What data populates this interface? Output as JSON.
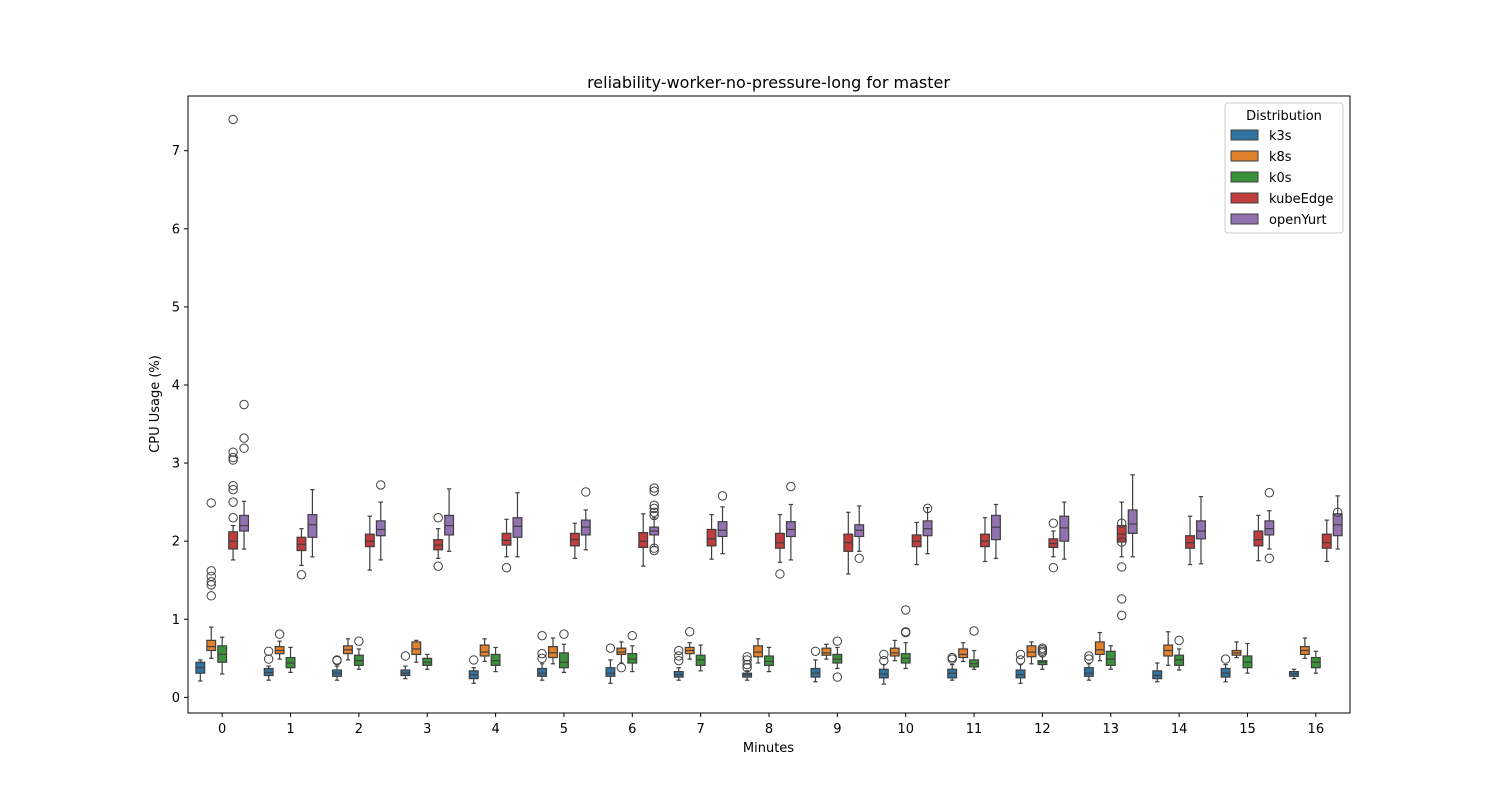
{
  "chart_data": {
    "type": "box",
    "title": "reliability-worker-no-pressure-long for master",
    "xlabel": "Minutes",
    "ylabel": "CPU Usage (%)",
    "categories": [
      "0",
      "1",
      "2",
      "3",
      "4",
      "5",
      "6",
      "7",
      "8",
      "9",
      "10",
      "11",
      "12",
      "13",
      "14",
      "15",
      "16"
    ],
    "y_ticks": [
      0,
      1,
      2,
      3,
      4,
      5,
      6,
      7
    ],
    "ylim": [
      -0.2,
      7.7
    ],
    "grid": false,
    "legend": {
      "title": "Distribution",
      "position": "top-right"
    },
    "series": [
      {
        "name": "k3s",
        "color": "#3274a1",
        "boxes": [
          {
            "q1": 0.31,
            "med": 0.38,
            "q3": 0.45,
            "lo": 0.21,
            "hi": 0.48,
            "out": []
          },
          {
            "q1": 0.28,
            "med": 0.32,
            "q3": 0.37,
            "lo": 0.22,
            "hi": 0.4,
            "out": [
              0.49,
              0.59
            ]
          },
          {
            "q1": 0.27,
            "med": 0.31,
            "q3": 0.35,
            "lo": 0.22,
            "hi": 0.4,
            "out": [
              0.47,
              0.48
            ]
          },
          {
            "q1": 0.28,
            "med": 0.31,
            "q3": 0.35,
            "lo": 0.24,
            "hi": 0.4,
            "out": [
              0.53
            ]
          },
          {
            "q1": 0.24,
            "med": 0.29,
            "q3": 0.34,
            "lo": 0.18,
            "hi": 0.38,
            "out": [
              0.48
            ]
          },
          {
            "q1": 0.27,
            "med": 0.31,
            "q3": 0.37,
            "lo": 0.22,
            "hi": 0.43,
            "out": [
              0.5,
              0.56,
              0.79
            ]
          },
          {
            "q1": 0.27,
            "med": 0.31,
            "q3": 0.38,
            "lo": 0.18,
            "hi": 0.48,
            "out": [
              0.63
            ]
          },
          {
            "q1": 0.26,
            "med": 0.29,
            "q3": 0.33,
            "lo": 0.22,
            "hi": 0.38,
            "out": [
              0.47,
              0.53,
              0.6
            ]
          },
          {
            "q1": 0.26,
            "med": 0.29,
            "q3": 0.31,
            "lo": 0.22,
            "hi": 0.34,
            "out": [
              0.38,
              0.42,
              0.48,
              0.52
            ]
          },
          {
            "q1": 0.26,
            "med": 0.31,
            "q3": 0.37,
            "lo": 0.2,
            "hi": 0.48,
            "out": [
              0.59
            ]
          },
          {
            "q1": 0.25,
            "med": 0.3,
            "q3": 0.36,
            "lo": 0.17,
            "hi": 0.42,
            "out": [
              0.47,
              0.55
            ]
          },
          {
            "q1": 0.25,
            "med": 0.31,
            "q3": 0.36,
            "lo": 0.22,
            "hi": 0.42,
            "out": [
              0.49,
              0.51
            ]
          },
          {
            "q1": 0.25,
            "med": 0.29,
            "q3": 0.35,
            "lo": 0.18,
            "hi": 0.42,
            "out": [
              0.48,
              0.55
            ]
          },
          {
            "q1": 0.27,
            "med": 0.31,
            "q3": 0.38,
            "lo": 0.22,
            "hi": 0.43,
            "out": [
              0.49,
              0.53
            ]
          },
          {
            "q1": 0.24,
            "med": 0.28,
            "q3": 0.34,
            "lo": 0.2,
            "hi": 0.44,
            "out": []
          },
          {
            "q1": 0.26,
            "med": 0.31,
            "q3": 0.37,
            "lo": 0.2,
            "hi": 0.42,
            "out": [
              0.49
            ]
          },
          {
            "q1": 0.27,
            "med": 0.3,
            "q3": 0.33,
            "lo": 0.24,
            "hi": 0.36,
            "out": []
          }
        ]
      },
      {
        "name": "k8s",
        "color": "#e1812c",
        "boxes": [
          {
            "q1": 0.6,
            "med": 0.65,
            "q3": 0.73,
            "lo": 0.5,
            "hi": 0.9,
            "out": [
              1.3,
              1.44,
              1.48,
              1.55,
              1.62,
              2.49
            ]
          },
          {
            "q1": 0.56,
            "med": 0.6,
            "q3": 0.65,
            "lo": 0.49,
            "hi": 0.72,
            "out": [
              0.81
            ]
          },
          {
            "q1": 0.56,
            "med": 0.61,
            "q3": 0.66,
            "lo": 0.48,
            "hi": 0.75,
            "out": []
          },
          {
            "q1": 0.55,
            "med": 0.62,
            "q3": 0.71,
            "lo": 0.45,
            "hi": 0.73,
            "out": []
          },
          {
            "q1": 0.53,
            "med": 0.58,
            "q3": 0.67,
            "lo": 0.46,
            "hi": 0.75,
            "out": []
          },
          {
            "q1": 0.51,
            "med": 0.57,
            "q3": 0.65,
            "lo": 0.43,
            "hi": 0.76,
            "out": []
          },
          {
            "q1": 0.55,
            "med": 0.58,
            "q3": 0.63,
            "lo": 0.44,
            "hi": 0.71,
            "out": [
              0.38
            ]
          },
          {
            "q1": 0.56,
            "med": 0.6,
            "q3": 0.64,
            "lo": 0.49,
            "hi": 0.7,
            "out": [
              0.84
            ]
          },
          {
            "q1": 0.52,
            "med": 0.58,
            "q3": 0.66,
            "lo": 0.44,
            "hi": 0.75,
            "out": []
          },
          {
            "q1": 0.54,
            "med": 0.57,
            "q3": 0.63,
            "lo": 0.49,
            "hi": 0.68,
            "out": []
          },
          {
            "q1": 0.53,
            "med": 0.57,
            "q3": 0.63,
            "lo": 0.47,
            "hi": 0.73,
            "out": []
          },
          {
            "q1": 0.51,
            "med": 0.55,
            "q3": 0.62,
            "lo": 0.46,
            "hi": 0.7,
            "out": []
          },
          {
            "q1": 0.52,
            "med": 0.58,
            "q3": 0.66,
            "lo": 0.43,
            "hi": 0.71,
            "out": []
          },
          {
            "q1": 0.55,
            "med": 0.61,
            "q3": 0.71,
            "lo": 0.47,
            "hi": 0.83,
            "out": []
          },
          {
            "q1": 0.53,
            "med": 0.6,
            "q3": 0.67,
            "lo": 0.41,
            "hi": 0.84,
            "out": []
          },
          {
            "q1": 0.54,
            "med": 0.57,
            "q3": 0.6,
            "lo": 0.51,
            "hi": 0.71,
            "out": []
          },
          {
            "q1": 0.55,
            "med": 0.6,
            "q3": 0.65,
            "lo": 0.5,
            "hi": 0.76,
            "out": []
          }
        ]
      },
      {
        "name": "k0s",
        "color": "#3a923a",
        "boxes": [
          {
            "q1": 0.45,
            "med": 0.55,
            "q3": 0.66,
            "lo": 0.3,
            "hi": 0.77,
            "out": []
          },
          {
            "q1": 0.38,
            "med": 0.44,
            "q3": 0.51,
            "lo": 0.32,
            "hi": 0.64,
            "out": []
          },
          {
            "q1": 0.41,
            "med": 0.47,
            "q3": 0.54,
            "lo": 0.36,
            "hi": 0.62,
            "out": [
              0.72
            ]
          },
          {
            "q1": 0.41,
            "med": 0.45,
            "q3": 0.5,
            "lo": 0.36,
            "hi": 0.55,
            "out": []
          },
          {
            "q1": 0.41,
            "med": 0.47,
            "q3": 0.55,
            "lo": 0.33,
            "hi": 0.64,
            "out": []
          },
          {
            "q1": 0.38,
            "med": 0.45,
            "q3": 0.57,
            "lo": 0.32,
            "hi": 0.68,
            "out": [
              0.81
            ]
          },
          {
            "q1": 0.44,
            "med": 0.49,
            "q3": 0.56,
            "lo": 0.33,
            "hi": 0.66,
            "out": [
              0.79
            ]
          },
          {
            "q1": 0.41,
            "med": 0.48,
            "q3": 0.54,
            "lo": 0.34,
            "hi": 0.67,
            "out": []
          },
          {
            "q1": 0.41,
            "med": 0.46,
            "q3": 0.53,
            "lo": 0.33,
            "hi": 0.64,
            "out": []
          },
          {
            "q1": 0.44,
            "med": 0.49,
            "q3": 0.55,
            "lo": 0.37,
            "hi": 0.64,
            "out": [
              0.26,
              0.72
            ]
          },
          {
            "q1": 0.44,
            "med": 0.5,
            "q3": 0.56,
            "lo": 0.37,
            "hi": 0.7,
            "out": [
              0.83,
              0.84,
              1.12
            ]
          },
          {
            "q1": 0.39,
            "med": 0.43,
            "q3": 0.48,
            "lo": 0.36,
            "hi": 0.6,
            "out": [
              0.85
            ]
          },
          {
            "q1": 0.42,
            "med": 0.45,
            "q3": 0.47,
            "lo": 0.36,
            "hi": 0.52,
            "out": [
              0.57,
              0.59,
              0.61,
              0.63
            ]
          },
          {
            "q1": 0.41,
            "med": 0.49,
            "q3": 0.59,
            "lo": 0.36,
            "hi": 0.66,
            "out": []
          },
          {
            "q1": 0.41,
            "med": 0.48,
            "q3": 0.54,
            "lo": 0.35,
            "hi": 0.62,
            "out": [
              0.73
            ]
          },
          {
            "q1": 0.38,
            "med": 0.45,
            "q3": 0.53,
            "lo": 0.31,
            "hi": 0.69,
            "out": []
          },
          {
            "q1": 0.38,
            "med": 0.45,
            "q3": 0.51,
            "lo": 0.31,
            "hi": 0.59,
            "out": []
          }
        ]
      },
      {
        "name": "kubeEdge",
        "color": "#c03d3e",
        "boxes": [
          {
            "q1": 1.9,
            "med": 2.0,
            "q3": 2.12,
            "lo": 1.76,
            "hi": 2.2,
            "out": [
              2.3,
              2.5,
              2.66,
              2.71,
              3.04,
              3.07,
              3.14,
              7.4
            ]
          },
          {
            "q1": 1.88,
            "med": 1.96,
            "q3": 2.05,
            "lo": 1.69,
            "hi": 2.16,
            "out": [
              1.57
            ]
          },
          {
            "q1": 1.93,
            "med": 2.0,
            "q3": 2.09,
            "lo": 1.63,
            "hi": 2.32,
            "out": []
          },
          {
            "q1": 1.89,
            "med": 1.95,
            "q3": 2.02,
            "lo": 1.78,
            "hi": 2.16,
            "out": [
              1.68,
              2.3
            ]
          },
          {
            "q1": 1.95,
            "med": 2.01,
            "q3": 2.1,
            "lo": 1.8,
            "hi": 2.28,
            "out": [
              1.66
            ]
          },
          {
            "q1": 1.94,
            "med": 2.02,
            "q3": 2.1,
            "lo": 1.78,
            "hi": 2.23,
            "out": []
          },
          {
            "q1": 1.92,
            "med": 2.0,
            "q3": 2.11,
            "lo": 1.68,
            "hi": 2.35,
            "out": []
          },
          {
            "q1": 1.94,
            "med": 2.03,
            "q3": 2.15,
            "lo": 1.77,
            "hi": 2.34,
            "out": []
          },
          {
            "q1": 1.91,
            "med": 1.98,
            "q3": 2.1,
            "lo": 1.73,
            "hi": 2.34,
            "out": [
              1.58
            ]
          },
          {
            "q1": 1.87,
            "med": 1.98,
            "q3": 2.09,
            "lo": 1.58,
            "hi": 2.37,
            "out": []
          },
          {
            "q1": 1.93,
            "med": 2.0,
            "q3": 2.08,
            "lo": 1.7,
            "hi": 2.24,
            "out": []
          },
          {
            "q1": 1.93,
            "med": 2.0,
            "q3": 2.09,
            "lo": 1.74,
            "hi": 2.3,
            "out": []
          },
          {
            "q1": 1.92,
            "med": 1.97,
            "q3": 2.03,
            "lo": 1.8,
            "hi": 2.13,
            "out": [
              1.66,
              2.23
            ]
          },
          {
            "q1": 1.99,
            "med": 2.09,
            "q3": 2.2,
            "lo": 1.8,
            "hi": 2.5,
            "out": [
              1.05,
              1.26,
              1.67,
              1.99,
              2.23
            ]
          },
          {
            "q1": 1.91,
            "med": 1.98,
            "q3": 2.07,
            "lo": 1.7,
            "hi": 2.32,
            "out": []
          },
          {
            "q1": 1.94,
            "med": 2.02,
            "q3": 2.13,
            "lo": 1.75,
            "hi": 2.33,
            "out": []
          },
          {
            "q1": 1.91,
            "med": 1.98,
            "q3": 2.09,
            "lo": 1.74,
            "hi": 2.27,
            "out": []
          }
        ]
      },
      {
        "name": "openYurt",
        "color": "#9372b2",
        "boxes": [
          {
            "q1": 2.13,
            "med": 2.2,
            "q3": 2.33,
            "lo": 1.9,
            "hi": 2.51,
            "out": [
              3.19,
              3.32,
              3.75
            ]
          },
          {
            "q1": 2.05,
            "med": 2.21,
            "q3": 2.34,
            "lo": 1.8,
            "hi": 2.66,
            "out": []
          },
          {
            "q1": 2.07,
            "med": 2.15,
            "q3": 2.26,
            "lo": 1.76,
            "hi": 2.5,
            "out": [
              2.72
            ]
          },
          {
            "q1": 2.08,
            "med": 2.2,
            "q3": 2.33,
            "lo": 1.87,
            "hi": 2.67,
            "out": []
          },
          {
            "q1": 2.05,
            "med": 2.19,
            "q3": 2.3,
            "lo": 1.8,
            "hi": 2.62,
            "out": []
          },
          {
            "q1": 2.08,
            "med": 2.18,
            "q3": 2.27,
            "lo": 1.89,
            "hi": 2.4,
            "out": [
              2.63
            ]
          },
          {
            "q1": 2.08,
            "med": 2.13,
            "q3": 2.18,
            "lo": 1.93,
            "hi": 2.3,
            "out": [
              1.88,
              1.91,
              2.33,
              2.37,
              2.42,
              2.46,
              2.64,
              2.68
            ]
          },
          {
            "q1": 2.06,
            "med": 2.14,
            "q3": 2.25,
            "lo": 1.84,
            "hi": 2.44,
            "out": [
              2.58
            ]
          },
          {
            "q1": 2.06,
            "med": 2.15,
            "q3": 2.25,
            "lo": 1.76,
            "hi": 2.47,
            "out": [
              2.7
            ]
          },
          {
            "q1": 2.06,
            "med": 2.14,
            "q3": 2.21,
            "lo": 1.87,
            "hi": 2.45,
            "out": [
              1.78
            ]
          },
          {
            "q1": 2.07,
            "med": 2.16,
            "q3": 2.26,
            "lo": 1.84,
            "hi": 2.43,
            "out": [
              2.42
            ]
          },
          {
            "q1": 2.02,
            "med": 2.18,
            "q3": 2.33,
            "lo": 1.78,
            "hi": 2.47,
            "out": []
          },
          {
            "q1": 2.0,
            "med": 2.17,
            "q3": 2.32,
            "lo": 1.77,
            "hi": 2.5,
            "out": []
          },
          {
            "q1": 2.1,
            "med": 2.22,
            "q3": 2.4,
            "lo": 1.8,
            "hi": 2.85,
            "out": []
          },
          {
            "q1": 2.03,
            "med": 2.13,
            "q3": 2.26,
            "lo": 1.71,
            "hi": 2.57,
            "out": []
          },
          {
            "q1": 2.08,
            "med": 2.16,
            "q3": 2.26,
            "lo": 1.9,
            "hi": 2.39,
            "out": [
              1.78,
              2.62
            ]
          },
          {
            "q1": 2.07,
            "med": 2.21,
            "q3": 2.35,
            "lo": 1.9,
            "hi": 2.58,
            "out": [
              2.37
            ]
          }
        ]
      }
    ]
  }
}
